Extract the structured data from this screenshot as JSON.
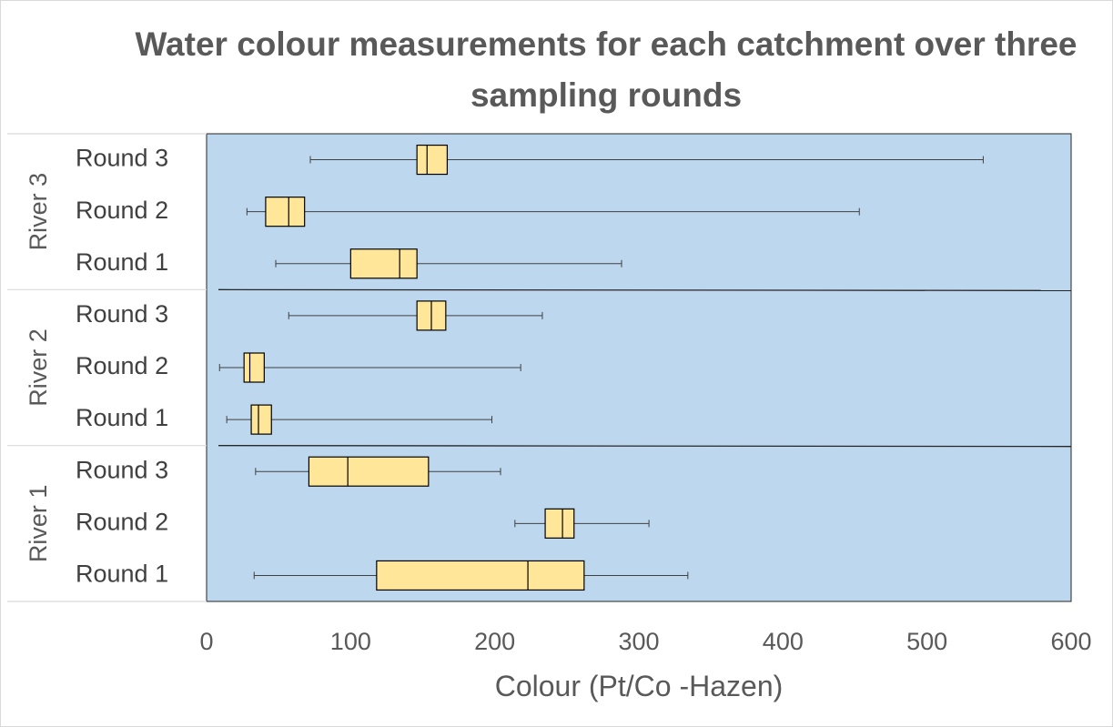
{
  "chart_data": {
    "type": "boxplot",
    "orientation": "horizontal",
    "title": "Water colour measurements for each catchment over three sampling rounds",
    "xlabel": "Colour (Pt/Co -Hazen)",
    "ylabel": "",
    "xlim": [
      0,
      600
    ],
    "xticks": [
      "0",
      "100",
      "200",
      "300",
      "400",
      "500",
      "600"
    ],
    "groups": [
      {
        "name": "River 3",
        "boxes": [
          {
            "label": "Round 3",
            "min": 72,
            "q1": 146,
            "median": 153,
            "q3": 167,
            "max": 539
          },
          {
            "label": "Round 2",
            "min": 28,
            "q1": 41,
            "median": 57,
            "q3": 68,
            "max": 453
          },
          {
            "label": "Round 1",
            "min": 48,
            "q1": 100,
            "median": 134,
            "q3": 146,
            "max": 288
          }
        ]
      },
      {
        "name": "River 2",
        "boxes": [
          {
            "label": "Round 3",
            "min": 57,
            "q1": 146,
            "median": 156,
            "q3": 166,
            "max": 233
          },
          {
            "label": "Round 2",
            "min": 9,
            "q1": 26,
            "median": 30,
            "q3": 40,
            "max": 218
          },
          {
            "label": "Round 1",
            "min": 14,
            "q1": 31,
            "median": 36,
            "q3": 45,
            "max": 198
          }
        ]
      },
      {
        "name": "River 1",
        "boxes": [
          {
            "label": "Round 3",
            "min": 34,
            "q1": 71,
            "median": 98,
            "q3": 154,
            "max": 204
          },
          {
            "label": "Round 2",
            "min": 214,
            "q1": 235,
            "median": 247,
            "q3": 255,
            "max": 307
          },
          {
            "label": "Round 1",
            "min": 33,
            "q1": 118,
            "median": 223,
            "q3": 262,
            "max": 334
          }
        ]
      }
    ],
    "colors": {
      "plot_background": "#bdd7ee",
      "box_fill": "#ffe699",
      "box_stroke": "#000000",
      "whisker": "#404040",
      "separator": "#262626",
      "text": "#595959"
    }
  }
}
